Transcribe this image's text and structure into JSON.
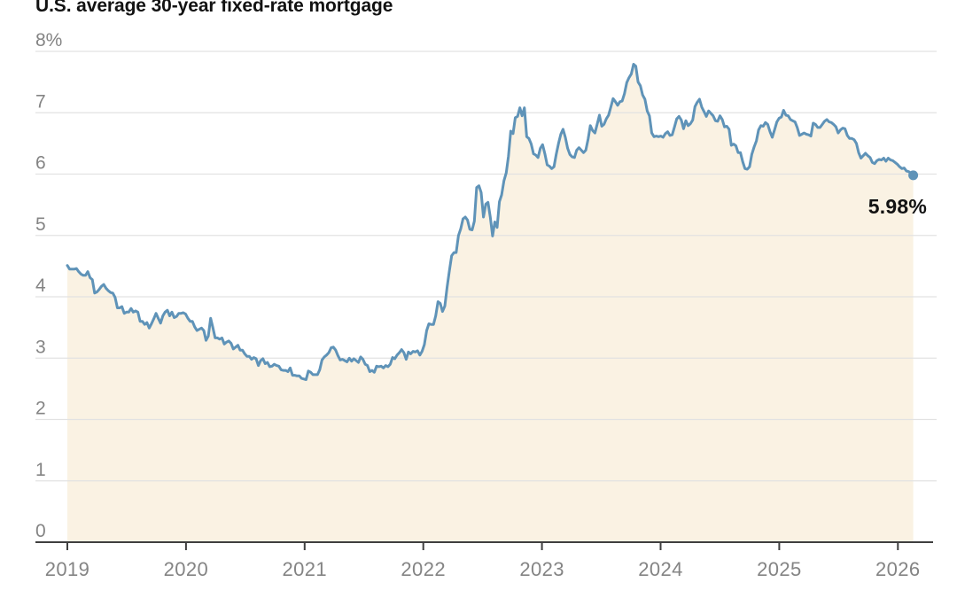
{
  "header": {
    "title": "U.S. average 30-year fixed-rate mortgage"
  },
  "chart_data": {
    "type": "area",
    "title": "U.S. average 30-year fixed-rate mortgage",
    "xlabel": "",
    "ylabel": "",
    "unit": "percent",
    "ylim": [
      0,
      8
    ],
    "xlim_years": [
      2019,
      2026.35
    ],
    "grid": true,
    "legend": false,
    "y_ticks": [
      {
        "value": 8,
        "label": "8%"
      },
      {
        "value": 7,
        "label": "7"
      },
      {
        "value": 6,
        "label": "6"
      },
      {
        "value": 5,
        "label": "5"
      },
      {
        "value": 4,
        "label": "4"
      },
      {
        "value": 3,
        "label": "3"
      },
      {
        "value": 2,
        "label": "2"
      },
      {
        "value": 1,
        "label": "1"
      },
      {
        "value": 0,
        "label": "0"
      }
    ],
    "x_ticks": [
      {
        "year": 2019,
        "label": "2019"
      },
      {
        "year": 2020,
        "label": "2020"
      },
      {
        "year": 2021,
        "label": "2021"
      },
      {
        "year": 2022,
        "label": "2022"
      },
      {
        "year": 2023,
        "label": "2023"
      },
      {
        "year": 2024,
        "label": "2024"
      },
      {
        "year": 2025,
        "label": "2025"
      },
      {
        "year": 2026,
        "label": "2026"
      }
    ],
    "series": [
      {
        "name": "U.S. average 30-year fixed-rate mortgage",
        "cadence": "weekly",
        "start_year": 2019,
        "values": [
          4.51,
          4.45,
          4.45,
          4.45,
          4.46,
          4.41,
          4.37,
          4.35,
          4.35,
          4.41,
          4.31,
          4.28,
          4.06,
          4.08,
          4.12,
          4.17,
          4.2,
          4.14,
          4.1,
          4.07,
          4.06,
          3.99,
          3.82,
          3.82,
          3.84,
          3.73,
          3.75,
          3.75,
          3.81,
          3.75,
          3.77,
          3.75,
          3.6,
          3.6,
          3.55,
          3.58,
          3.49,
          3.56,
          3.64,
          3.73,
          3.65,
          3.57,
          3.69,
          3.75,
          3.78,
          3.69,
          3.75,
          3.66,
          3.68,
          3.73,
          3.73,
          3.74,
          3.72,
          3.65,
          3.6,
          3.6,
          3.51,
          3.45,
          3.47,
          3.49,
          3.45,
          3.29,
          3.36,
          3.65,
          3.5,
          3.33,
          3.33,
          3.31,
          3.33,
          3.23,
          3.26,
          3.28,
          3.24,
          3.15,
          3.18,
          3.21,
          3.13,
          3.13,
          3.07,
          3.03,
          3.03,
          2.98,
          3.01,
          2.99,
          2.88,
          2.96,
          2.99,
          2.91,
          2.93,
          2.86,
          2.87,
          2.9,
          2.88,
          2.87,
          2.81,
          2.8,
          2.8,
          2.78,
          2.84,
          2.72,
          2.72,
          2.71,
          2.71,
          2.67,
          2.66,
          2.65,
          2.79,
          2.77,
          2.73,
          2.73,
          2.73,
          2.81,
          2.97,
          3.02,
          3.05,
          3.09,
          3.17,
          3.18,
          3.13,
          3.04,
          2.97,
          2.98,
          2.96,
          2.94,
          3.0,
          2.95,
          2.99,
          2.96,
          2.93,
          3.02,
          2.98,
          2.9,
          2.88,
          2.78,
          2.8,
          2.77,
          2.87,
          2.86,
          2.87,
          2.84,
          2.88,
          2.86,
          2.9,
          3.01,
          2.99,
          3.05,
          3.09,
          3.14,
          3.09,
          2.98,
          3.1,
          3.07,
          3.11,
          3.1,
          3.12,
          3.05,
          3.11,
          3.22,
          3.45,
          3.56,
          3.55,
          3.55,
          3.69,
          3.92,
          3.89,
          3.76,
          3.85,
          4.16,
          4.42,
          4.67,
          4.72,
          4.72,
          5.0,
          5.11,
          5.27,
          5.3,
          5.25,
          5.1,
          5.09,
          5.23,
          5.78,
          5.81,
          5.7,
          5.3,
          5.51,
          5.54,
          5.3,
          4.99,
          5.22,
          5.13,
          5.55,
          5.66,
          5.89,
          6.02,
          6.29,
          6.7,
          6.66,
          6.92,
          6.94,
          7.08,
          6.95,
          7.08,
          6.61,
          6.58,
          6.49,
          6.33,
          6.31,
          6.27,
          6.42,
          6.48,
          6.33,
          6.15,
          6.13,
          6.09,
          6.12,
          6.32,
          6.5,
          6.65,
          6.73,
          6.6,
          6.42,
          6.32,
          6.28,
          6.27,
          6.39,
          6.43,
          6.39,
          6.35,
          6.39,
          6.57,
          6.79,
          6.71,
          6.67,
          6.81,
          6.96,
          6.78,
          6.81,
          6.9,
          6.96,
          7.09,
          7.23,
          7.18,
          7.12,
          7.18,
          7.19,
          7.31,
          7.49,
          7.57,
          7.63,
          7.79,
          7.76,
          7.5,
          7.44,
          7.29,
          7.22,
          7.03,
          6.95,
          6.67,
          6.61,
          6.62,
          6.61,
          6.62,
          6.6,
          6.66,
          6.69,
          6.63,
          6.64,
          6.77,
          6.9,
          6.94,
          6.88,
          6.74,
          6.87,
          6.79,
          6.82,
          6.88,
          7.1,
          7.17,
          7.22,
          7.09,
          7.02,
          6.94,
          7.03,
          6.99,
          6.95,
          6.87,
          6.86,
          6.95,
          6.89,
          6.77,
          6.78,
          6.73,
          6.47,
          6.49,
          6.46,
          6.35,
          6.35,
          6.2,
          6.09,
          6.08,
          6.12,
          6.32,
          6.44,
          6.54,
          6.72,
          6.79,
          6.78,
          6.84,
          6.81,
          6.69,
          6.6,
          6.72,
          6.85,
          6.91,
          6.93,
          7.04,
          6.96,
          6.95,
          6.89,
          6.87,
          6.85,
          6.76,
          6.63,
          6.65,
          6.67,
          6.65,
          6.64,
          6.62,
          6.83,
          6.81,
          6.76,
          6.76,
          6.81,
          6.86,
          6.89,
          6.85,
          6.84,
          6.81,
          6.77,
          6.67,
          6.72,
          6.75,
          6.74,
          6.63,
          6.58,
          6.58,
          6.56,
          6.5,
          6.35,
          6.26,
          6.3,
          6.34,
          6.3,
          6.27,
          6.19,
          6.17,
          6.22,
          6.24,
          6.23,
          6.26,
          6.21,
          6.26,
          6.23,
          6.22,
          6.19,
          6.16,
          6.12,
          6.09,
          6.1,
          6.05,
          6.04,
          6.01,
          5.98
        ]
      }
    ],
    "end_point": {
      "label": "5.98%",
      "value": 5.98
    },
    "colors": {
      "line": "#5f93b8",
      "area": "#faf2e3",
      "grid": "#e2e2e2",
      "axis": "#3f3f3f",
      "tick_text": "#848484",
      "title_text": "#121212",
      "end_label_text": "#121212"
    }
  }
}
